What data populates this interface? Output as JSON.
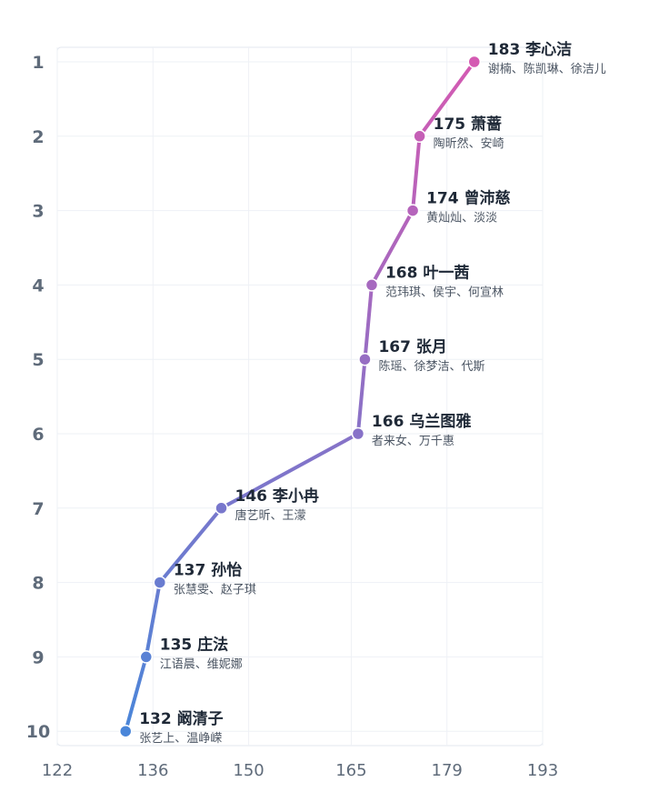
{
  "chart_data": {
    "type": "line",
    "title": "",
    "xlabel": "",
    "ylabel": "",
    "xlim": [
      122,
      193
    ],
    "x_ticks": [
      "122",
      "136",
      "150",
      "165",
      "179",
      "193"
    ],
    "y_ticks": [
      "1",
      "2",
      "3",
      "4",
      "5",
      "6",
      "7",
      "8",
      "9",
      "10"
    ],
    "grid": true,
    "colors": {
      "start": "#4a86d9",
      "end": "#d45ab2"
    },
    "points": [
      {
        "rank": 1,
        "value": 183,
        "name": "李心洁",
        "label": "183 李心洁",
        "sub": "谢楠、陈凯琳、徐洁儿"
      },
      {
        "rank": 2,
        "value": 175,
        "name": "萧蔷",
        "label": "175 萧蔷",
        "sub": "陶昕然、安崎"
      },
      {
        "rank": 3,
        "value": 174,
        "name": "曾沛慈",
        "label": "174 曾沛慈",
        "sub": "黄灿灿、淡淡"
      },
      {
        "rank": 4,
        "value": 168,
        "name": "叶一茜",
        "label": "168 叶一茜",
        "sub": "范玮琪、侯宇、何宣林"
      },
      {
        "rank": 5,
        "value": 167,
        "name": "张月",
        "label": "167 张月",
        "sub": "陈瑶、徐梦洁、代斯"
      },
      {
        "rank": 6,
        "value": 166,
        "name": "乌兰图雅",
        "label": "166 乌兰图雅",
        "sub": "者来女、万千惠"
      },
      {
        "rank": 7,
        "value": 146,
        "name": "李小冉",
        "label": "146 李小冉",
        "sub": "唐艺昕、王濛"
      },
      {
        "rank": 8,
        "value": 137,
        "name": "孙怡",
        "label": "137 孙怡",
        "sub": "张慧雯、赵子琪"
      },
      {
        "rank": 9,
        "value": 135,
        "name": "庄法",
        "label": "135 庄法",
        "sub": "江语晨、维妮娜"
      },
      {
        "rank": 10,
        "value": 132,
        "name": "阚清子",
        "label": "132 阚清子",
        "sub": "张艺上、温峥嵘"
      }
    ]
  }
}
